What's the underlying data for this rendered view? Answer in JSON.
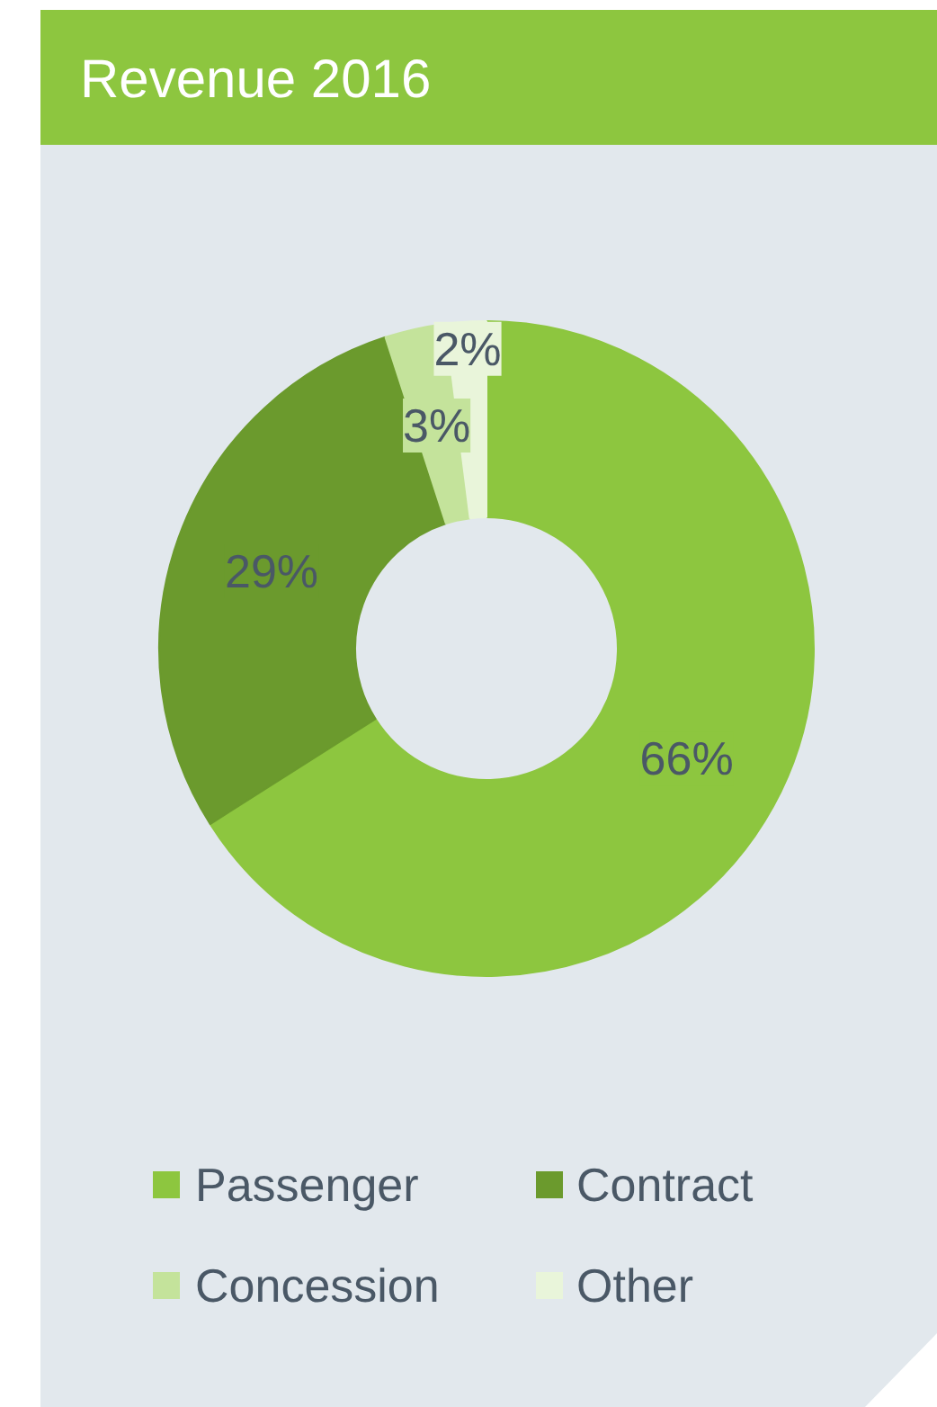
{
  "chart_data": {
    "type": "donut",
    "title": "Revenue 2016",
    "categories": [
      "Passenger",
      "Contract",
      "Concession",
      "Other"
    ],
    "values": [
      66,
      29,
      3,
      2
    ],
    "value_labels": [
      "66%",
      "29%",
      "3%",
      "2%"
    ],
    "colors": [
      "#8dc63f",
      "#6b9a2d",
      "#c4e39b",
      "#e9f5da"
    ],
    "legend": "bottom"
  }
}
